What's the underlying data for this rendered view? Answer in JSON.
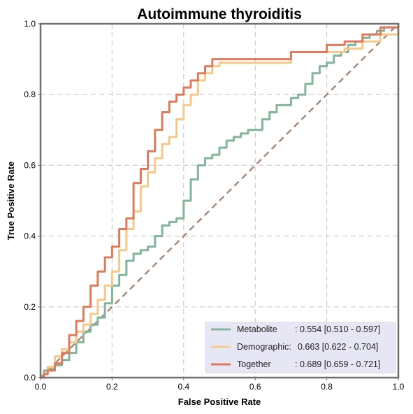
{
  "chart_data": {
    "type": "line",
    "title": "Autoimmune thyroiditis",
    "xlabel": "False Positive Rate",
    "ylabel": "True Positive Rate",
    "xlim": [
      0,
      1
    ],
    "ylim": [
      0,
      1
    ],
    "xticks": [
      "0.0",
      "0.2",
      "0.4",
      "0.6",
      "0.8",
      "1.0"
    ],
    "yticks": [
      "0.0",
      "0.2",
      "0.4",
      "0.6",
      "0.8",
      "1.0"
    ],
    "grid": true,
    "legend_position": "lower-right",
    "reference_line": {
      "style": "dashed",
      "color": "#a88a7a",
      "x": [
        0,
        1
      ],
      "y": [
        0,
        1
      ]
    },
    "series": [
      {
        "name": "Metabolite",
        "legend_name": "Metabolite",
        "legend_value": ": 0.554 [0.510 - 0.597]",
        "color": "#82b59a",
        "x": [
          0,
          0.01,
          0.02,
          0.04,
          0.06,
          0.08,
          0.1,
          0.12,
          0.14,
          0.16,
          0.18,
          0.2,
          0.22,
          0.24,
          0.26,
          0.28,
          0.3,
          0.32,
          0.34,
          0.36,
          0.38,
          0.4,
          0.42,
          0.44,
          0.46,
          0.48,
          0.5,
          0.52,
          0.54,
          0.56,
          0.58,
          0.6,
          0.62,
          0.64,
          0.66,
          0.68,
          0.7,
          0.72,
          0.74,
          0.76,
          0.78,
          0.8,
          0.82,
          0.84,
          0.86,
          0.88,
          0.9,
          0.92,
          0.94,
          0.96,
          0.98,
          1
        ],
        "y": [
          0,
          0.02,
          0.025,
          0.035,
          0.05,
          0.07,
          0.1,
          0.13,
          0.15,
          0.17,
          0.21,
          0.26,
          0.29,
          0.33,
          0.35,
          0.36,
          0.37,
          0.4,
          0.43,
          0.44,
          0.45,
          0.5,
          0.56,
          0.6,
          0.62,
          0.63,
          0.65,
          0.67,
          0.68,
          0.69,
          0.7,
          0.7,
          0.73,
          0.75,
          0.77,
          0.77,
          0.79,
          0.8,
          0.83,
          0.86,
          0.88,
          0.89,
          0.91,
          0.92,
          0.94,
          0.95,
          0.96,
          0.97,
          0.98,
          0.99,
          0.99,
          1
        ]
      },
      {
        "name": "Demographic",
        "legend_name": "Demographic:",
        "legend_value": "0.663 [0.622 - 0.704]",
        "color": "#f4c98a",
        "x": [
          0,
          0.01,
          0.02,
          0.04,
          0.06,
          0.08,
          0.1,
          0.12,
          0.14,
          0.16,
          0.18,
          0.2,
          0.22,
          0.24,
          0.26,
          0.28,
          0.3,
          0.32,
          0.34,
          0.36,
          0.38,
          0.4,
          0.42,
          0.44,
          0.46,
          0.48,
          0.5,
          0.52,
          0.6,
          0.7,
          0.8,
          0.85,
          0.9,
          0.95,
          1
        ],
        "y": [
          0,
          0.01,
          0.03,
          0.06,
          0.08,
          0.1,
          0.13,
          0.15,
          0.18,
          0.22,
          0.26,
          0.3,
          0.36,
          0.42,
          0.47,
          0.54,
          0.58,
          0.62,
          0.66,
          0.68,
          0.73,
          0.77,
          0.8,
          0.84,
          0.86,
          0.88,
          0.89,
          0.89,
          0.89,
          0.92,
          0.92,
          0.93,
          0.95,
          0.97,
          0.99
        ]
      },
      {
        "name": "Together",
        "legend_name": "Together",
        "legend_value": ": 0.689 [0.659 - 0.721]",
        "color": "#e07a5c",
        "x": [
          0,
          0.01,
          0.02,
          0.04,
          0.06,
          0.08,
          0.1,
          0.12,
          0.14,
          0.16,
          0.18,
          0.2,
          0.22,
          0.24,
          0.26,
          0.28,
          0.3,
          0.32,
          0.34,
          0.36,
          0.38,
          0.4,
          0.42,
          0.44,
          0.46,
          0.48,
          0.5,
          0.52,
          0.6,
          0.7,
          0.8,
          0.85,
          0.9,
          0.95,
          1
        ],
        "y": [
          0,
          0.01,
          0.02,
          0.04,
          0.07,
          0.12,
          0.16,
          0.2,
          0.26,
          0.3,
          0.34,
          0.37,
          0.42,
          0.45,
          0.55,
          0.59,
          0.64,
          0.7,
          0.75,
          0.78,
          0.8,
          0.82,
          0.84,
          0.86,
          0.88,
          0.9,
          0.9,
          0.9,
          0.9,
          0.92,
          0.94,
          0.95,
          0.97,
          0.99,
          1
        ]
      }
    ]
  }
}
